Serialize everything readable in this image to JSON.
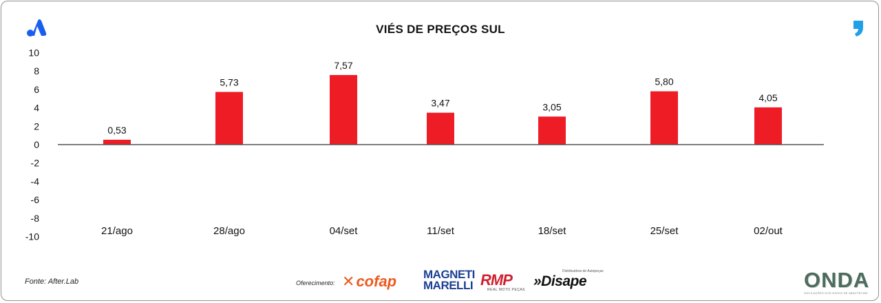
{
  "chart_data": {
    "type": "bar",
    "title": "VIÉS DE PREÇOS SUL",
    "categories": [
      "21/ago",
      "28/ago",
      "04/set",
      "11/set",
      "18/set",
      "25/set",
      "02/out"
    ],
    "values": [
      0.53,
      5.73,
      7.57,
      3.47,
      3.05,
      5.8,
      4.05
    ],
    "value_labels": [
      "0,53",
      "5,73",
      "7,57",
      "3,47",
      "3,05",
      "5,80",
      "4,05"
    ],
    "yticks": [
      "10",
      "8",
      "6",
      "4",
      "2",
      "0",
      "-2",
      "-4",
      "-6",
      "-8",
      "-10"
    ],
    "ylim": [
      -10,
      10
    ],
    "grid": false,
    "bar_color": "#ee1c25"
  },
  "footer": {
    "source": "Fonte: After.Lab",
    "offered_by": "Oferecimento:"
  },
  "sponsors": {
    "cofap": "cofap",
    "magneti_1": "MAGNETI",
    "magneti_2": "MARELLI",
    "rmp": "RMP",
    "rmp_sub": "REAL MOTO PEÇAS",
    "disape": "»Disape",
    "disape_sub": "Distribuidora de Autopeças",
    "onda": "ONDA",
    "onda_sub": "OSCILAÇÕES DOS NÍVEIS DE ABASTECIMENTO E PREÇOS"
  },
  "icons": {
    "left_logo": "brand-a-icon",
    "right_logo": "quote-comma-icon"
  }
}
